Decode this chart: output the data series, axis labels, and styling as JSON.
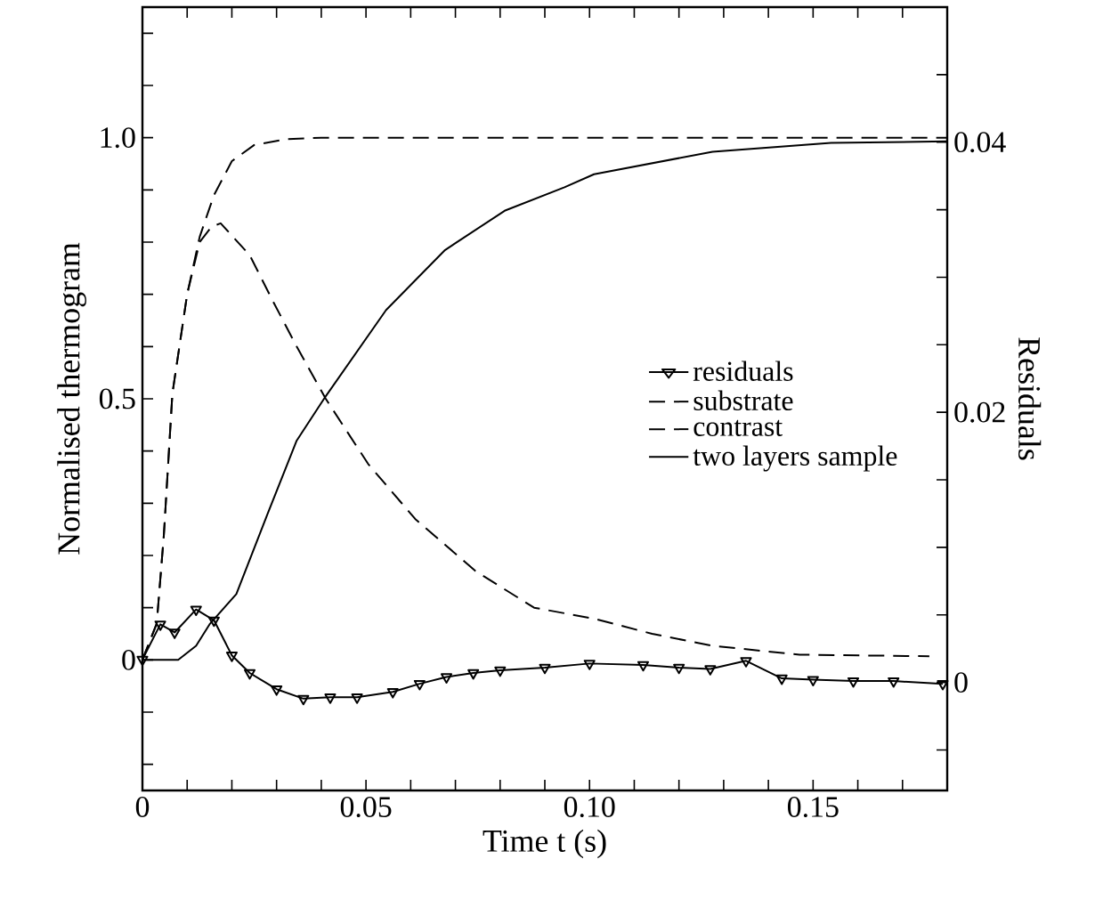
{
  "chart_data": {
    "type": "line",
    "xlabel": "Time t (s)",
    "ylabel": "Normalised thermogram",
    "y2label": "Residuals",
    "xlim": [
      0,
      0.18
    ],
    "ylim": [
      -0.25,
      1.25
    ],
    "y2lim": [
      -0.008,
      0.05
    ],
    "xticks": [
      0,
      {
        "value": 0.01,
        "label": null
      },
      {
        "value": 0.02,
        "label": null
      },
      {
        "value": 0.03,
        "label": null
      },
      {
        "value": 0.04,
        "label": null
      },
      0.05,
      {
        "value": 0.06,
        "label": null
      },
      {
        "value": 0.07,
        "label": null
      },
      {
        "value": 0.08,
        "label": null
      },
      {
        "value": 0.09,
        "label": null
      },
      {
        "value": 0.1,
        "label": "0.10"
      },
      {
        "value": 0.11,
        "label": null
      },
      {
        "value": 0.12,
        "label": null
      },
      {
        "value": 0.13,
        "label": null
      },
      {
        "value": 0.14,
        "label": null
      },
      0.15,
      {
        "value": 0.16,
        "label": null
      },
      {
        "value": 0.17,
        "label": null
      }
    ],
    "yticks": [
      {
        "value": -0.2,
        "label": null
      },
      {
        "value": -0.1,
        "label": null
      },
      0,
      {
        "value": 0.1,
        "label": null
      },
      {
        "value": 0.2,
        "label": null
      },
      {
        "value": 0.3,
        "label": null
      },
      {
        "value": 0.4,
        "label": null
      },
      0.5,
      {
        "value": 0.6,
        "label": null
      },
      {
        "value": 0.7,
        "label": null
      },
      {
        "value": 0.8,
        "label": null
      },
      {
        "value": 0.9,
        "label": null
      },
      {
        "value": 1.0,
        "label": "1.0"
      },
      {
        "value": 1.1,
        "label": null
      },
      {
        "value": 1.2,
        "label": null
      }
    ],
    "y2ticks": [
      {
        "value": -0.005,
        "label": null
      },
      0,
      {
        "value": 0.005,
        "label": null
      },
      {
        "value": 0.01,
        "label": null
      },
      {
        "value": 0.015,
        "label": null
      },
      0.02,
      {
        "value": 0.025,
        "label": null
      },
      {
        "value": 0.03,
        "label": null
      },
      {
        "value": 0.035,
        "label": null
      },
      0.04,
      {
        "value": 0.045,
        "label": null
      }
    ],
    "legend": "right",
    "grid": false,
    "series": [
      {
        "name": "residuals",
        "color": "#000000",
        "axis": "y2",
        "marker": "triangle",
        "line_style": "solid",
        "x": [
          0,
          0.004,
          0.0072,
          0.012,
          0.016,
          0.02,
          0.024,
          0.03,
          0.036,
          0.042,
          0.048,
          0.056,
          0.062,
          0.068,
          0.074,
          0.08,
          0.09,
          0.1,
          0.112,
          0.12,
          0.127,
          0.135,
          0.143,
          0.15,
          0.159,
          0.168,
          0.179
        ],
        "values": [
          0.0017,
          0.0043,
          0.0037,
          0.0054,
          0.0046,
          0.002,
          0.0007,
          -0.0005,
          -0.0012,
          -0.0011,
          -0.0011,
          -0.0007,
          -0.0001,
          0.0004,
          0.0007,
          0.0009,
          0.0011,
          0.0014,
          0.0013,
          0.0011,
          0.001,
          0.0016,
          0.0003,
          0.0002,
          0.0001,
          0.0001,
          -0.0001
        ]
      },
      {
        "name": "substrate",
        "color": "#000000",
        "line_style": "dashed",
        "marker": "none",
        "x": [
          0,
          0.0032,
          0.0048,
          0.0067,
          0.01,
          0.0128,
          0.016,
          0.02,
          0.025,
          0.032,
          0.04,
          0.08,
          0.12,
          0.18
        ],
        "values": [
          0,
          0.07,
          0.24,
          0.51,
          0.7,
          0.81,
          0.89,
          0.955,
          0.986,
          0.997,
          1.0,
          1.0,
          1.0,
          1.0
        ]
      },
      {
        "name": "contrast",
        "color": "#000000",
        "line_style": "dashed",
        "marker": "none",
        "x": [
          0,
          0.0032,
          0.0048,
          0.0067,
          0.01,
          0.0128,
          0.0155,
          0.0175,
          0.024,
          0.029,
          0.0345,
          0.041,
          0.0505,
          0.061,
          0.0745,
          0.0876,
          0.101,
          0.114,
          0.1275,
          0.147,
          0.176
        ],
        "values": [
          0,
          0.07,
          0.24,
          0.51,
          0.7,
          0.8,
          0.83,
          0.836,
          0.775,
          0.69,
          0.6,
          0.5,
          0.375,
          0.27,
          0.17,
          0.1,
          0.079,
          0.05,
          0.027,
          0.01,
          0.007
        ]
      },
      {
        "name": "two layers sample",
        "color": "#000000",
        "line_style": "solid",
        "marker": "none",
        "x": [
          0,
          0.008,
          0.012,
          0.015,
          0.021,
          0.028,
          0.0345,
          0.041,
          0.0545,
          0.0677,
          0.081,
          0.0944,
          0.101,
          0.1275,
          0.154,
          0.18
        ],
        "values": [
          0,
          0,
          0.027,
          0.068,
          0.126,
          0.28,
          0.42,
          0.505,
          0.67,
          0.785,
          0.86,
          0.905,
          0.93,
          0.973,
          0.99,
          0.993
        ]
      }
    ]
  }
}
